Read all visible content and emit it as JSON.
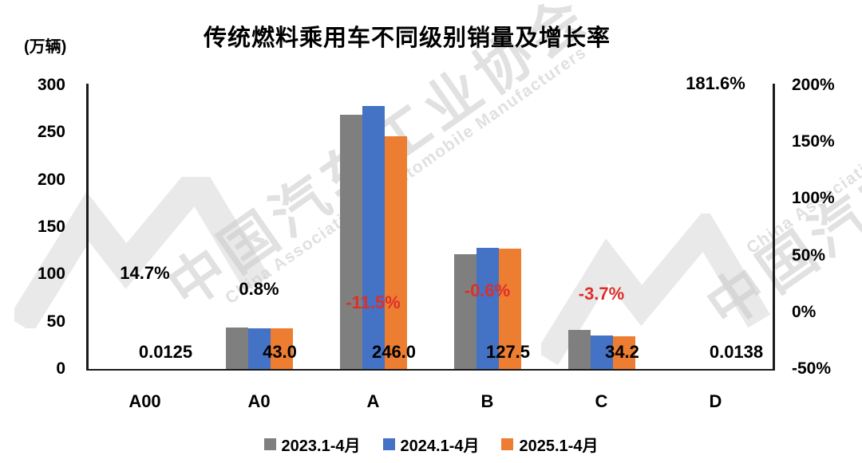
{
  "left_axis_unit": "(万辆)",
  "watermark": {
    "cn": "中国汽车工业协会",
    "en": "China Association of Automobile Manufacturers"
  },
  "chart_data": {
    "type": "bar",
    "title": "传统燃料乘用车不同级别销量及增长率",
    "categories": [
      "A00",
      "A0",
      "A",
      "B",
      "C",
      "D"
    ],
    "series": [
      {
        "name": "2023.1-4月",
        "color": "#7F7F7F",
        "values": [
          0.011,
          44.0,
          268.5,
          121.0,
          41.0,
          0.005
        ]
      },
      {
        "name": "2024.1-4月",
        "color": "#4472C4",
        "values": [
          0.0109,
          42.7,
          277.9,
          128.3,
          35.5,
          0.0049
        ]
      },
      {
        "name": "2025.1-4月",
        "color": "#ED7D31",
        "values": [
          0.0125,
          43.0,
          246.0,
          127.5,
          34.2,
          0.0138
        ]
      }
    ],
    "value_labels": [
      "0.0125",
      "43.0",
      "246.0",
      "127.5",
      "34.2",
      "0.0138"
    ],
    "growth_labels": [
      {
        "text": "14.7%",
        "value": 14.7,
        "color": "#000000"
      },
      {
        "text": "0.8%",
        "value": 0.8,
        "color": "#000000"
      },
      {
        "text": "-11.5%",
        "value": -11.5,
        "color": "#DD2F2A"
      },
      {
        "text": "-0.6%",
        "value": -0.6,
        "color": "#DD2F2A"
      },
      {
        "text": "-3.7%",
        "value": -3.7,
        "color": "#DD2F2A"
      },
      {
        "text": "181.6%",
        "value": 181.6,
        "color": "#000000"
      }
    ],
    "left_axis": {
      "unit": "(万辆)",
      "ticks": [
        "300",
        "250",
        "200",
        "150",
        "100",
        "50",
        "0"
      ],
      "min": 0,
      "max": 300
    },
    "right_axis": {
      "ticks": [
        "200%",
        "150%",
        "100%",
        "50%",
        "0%",
        "-50%"
      ],
      "min": -50,
      "max": 200
    },
    "legend": {
      "position": "bottom",
      "items": [
        "2023.1-4月",
        "2024.1-4月",
        "2025.1-4月"
      ]
    },
    "grid": false
  }
}
